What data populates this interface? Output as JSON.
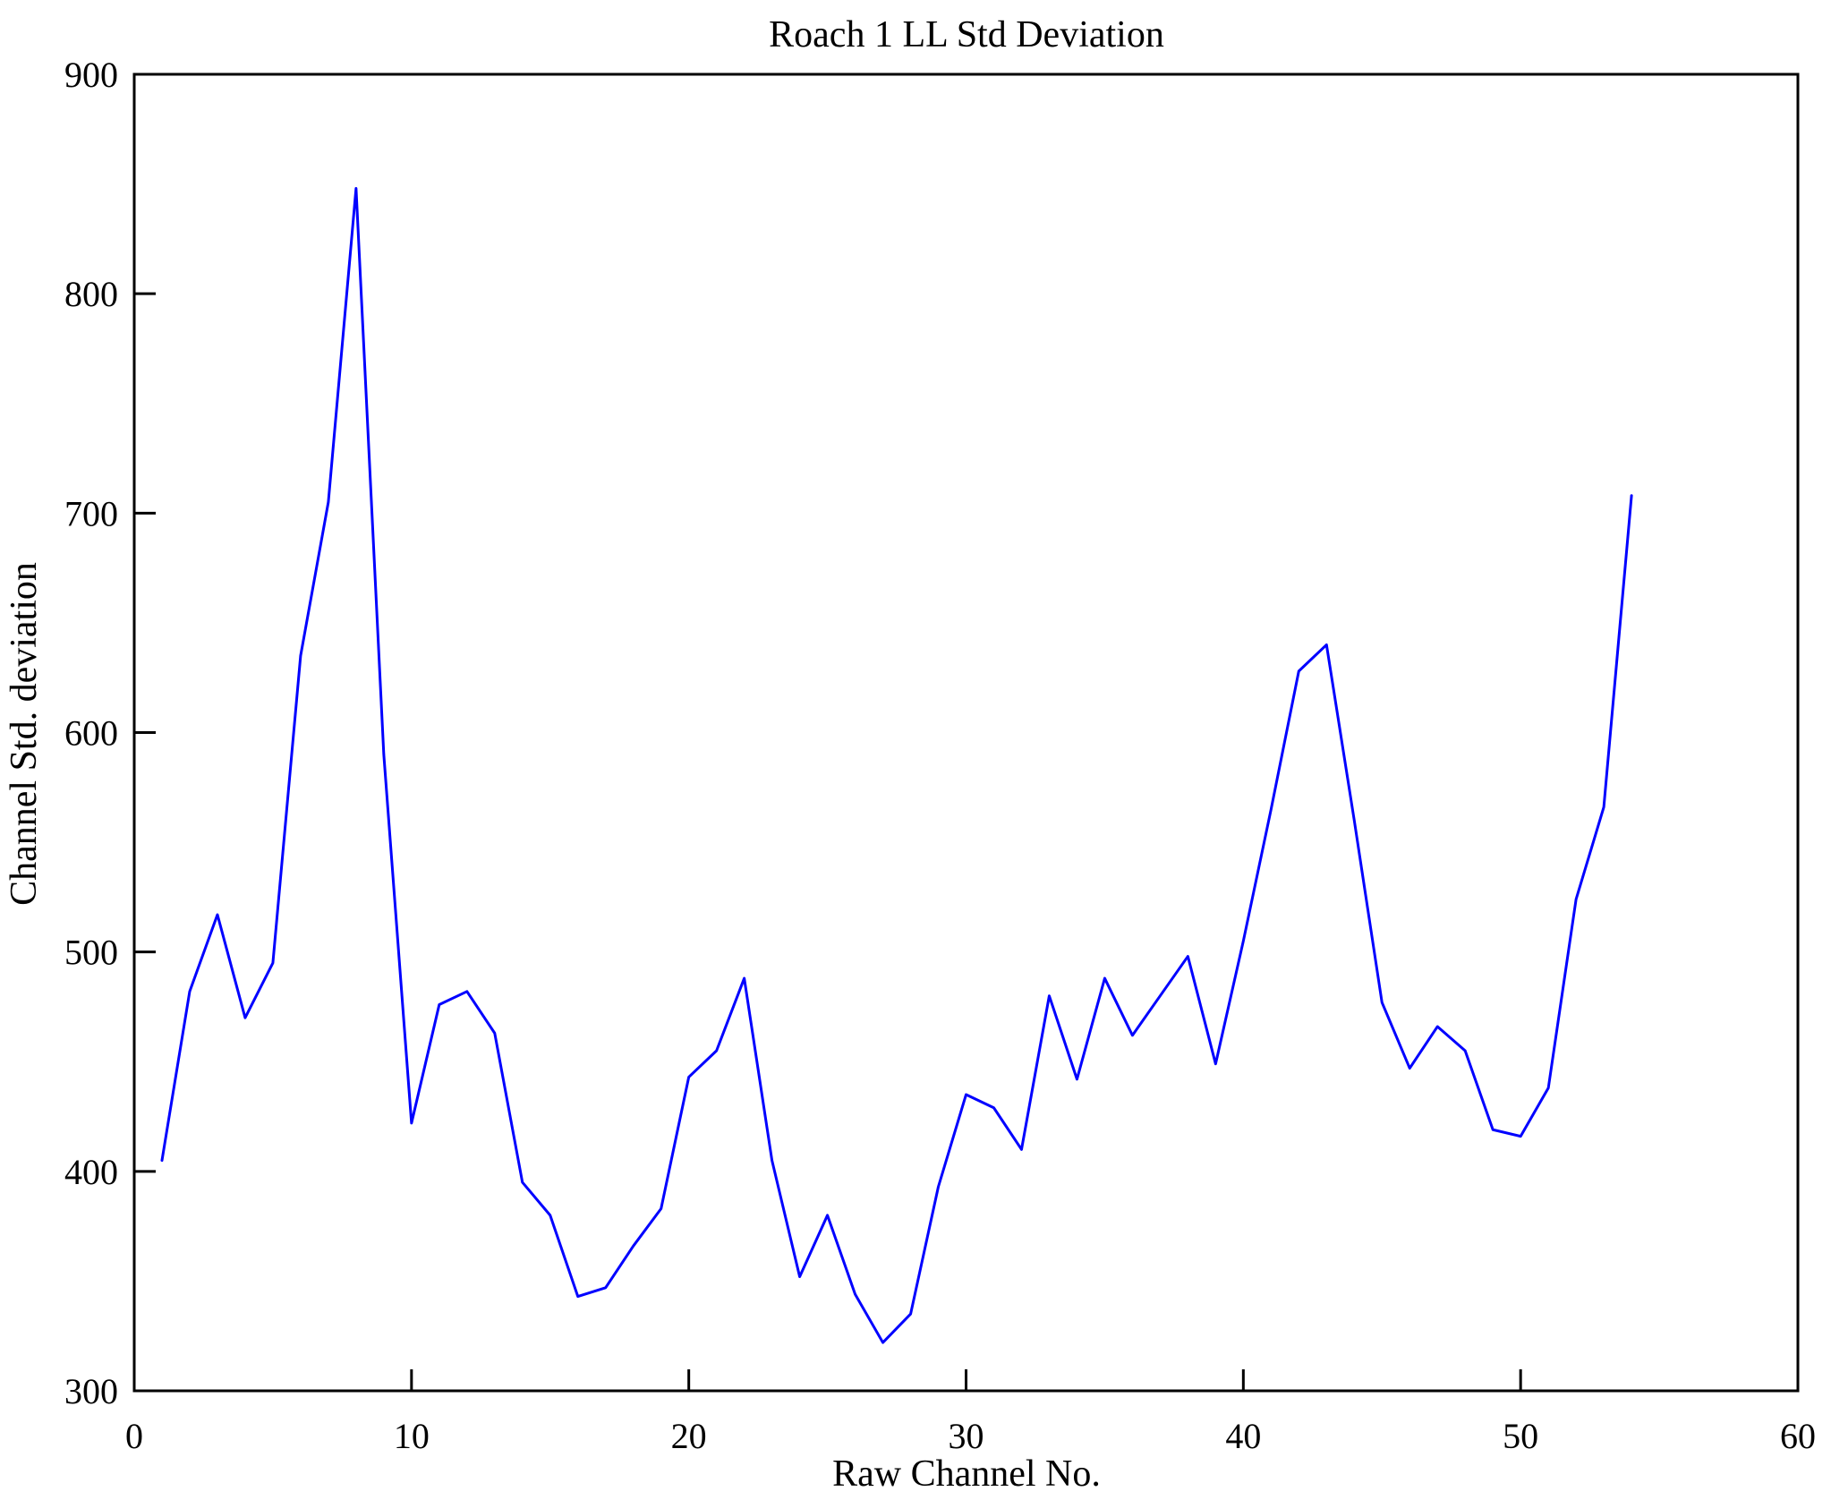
{
  "chart_data": {
    "type": "line",
    "title": "Roach 1 LL Std Deviation",
    "xlabel": "Raw Channel No.",
    "ylabel": "Channel Std. deviation",
    "xlim": [
      0,
      60
    ],
    "ylim": [
      300,
      900
    ],
    "xticks": [
      0,
      10,
      20,
      30,
      40,
      50,
      60
    ],
    "yticks": [
      300,
      400,
      500,
      600,
      700,
      800,
      900
    ],
    "grid": false,
    "legend": "none",
    "line_color": "#0000ff",
    "axis_color": "#000000",
    "background_color": "#ffffff",
    "x": [
      1,
      2,
      3,
      4,
      5,
      6,
      7,
      8,
      9,
      10,
      11,
      12,
      13,
      14,
      15,
      16,
      17,
      18,
      19,
      20,
      21,
      22,
      23,
      24,
      25,
      26,
      27,
      28,
      29,
      30,
      31,
      32,
      33,
      34,
      35,
      36,
      37,
      38,
      39,
      40,
      41,
      42,
      43,
      44,
      45,
      46,
      47,
      48,
      49,
      50,
      51,
      52,
      53,
      54
    ],
    "values": [
      405,
      482,
      517,
      470,
      495,
      635,
      705,
      848,
      590,
      422,
      476,
      482,
      463,
      395,
      380,
      343,
      347,
      366,
      383,
      443,
      455,
      488,
      405,
      352,
      380,
      344,
      322,
      335,
      393,
      435,
      429,
      410,
      480,
      442,
      488,
      462,
      480,
      498,
      449,
      505,
      565,
      628,
      640,
      560,
      477,
      447,
      466,
      455,
      419,
      416,
      438,
      524,
      566,
      708
    ]
  }
}
